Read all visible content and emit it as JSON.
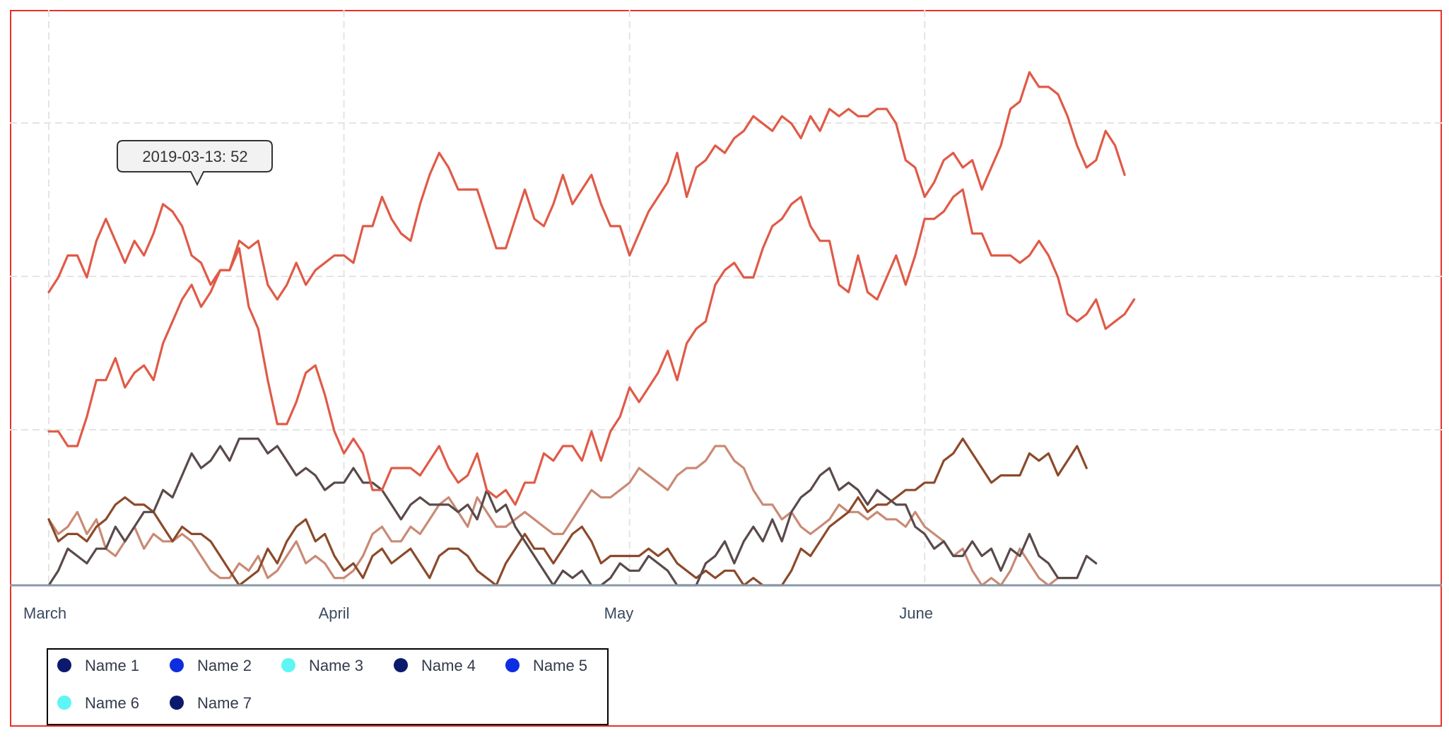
{
  "chart_data": {
    "type": "line",
    "title": "",
    "xlabel": "",
    "ylabel": "",
    "x_start": "2019-03-01",
    "x_end": "2019-06-21",
    "xtick_labels": [
      {
        "date": "2019-03-01",
        "label": "March"
      },
      {
        "date": "2019-04-01",
        "label": "April"
      },
      {
        "date": "2019-05-01",
        "label": "May"
      },
      {
        "date": "2019-06-01",
        "label": "June"
      }
    ],
    "ylim": [
      0,
      76
    ],
    "grid": true,
    "legend_position": "bottom-left",
    "tooltip": {
      "text": "2019-03-13: 52",
      "date": "2019-03-13",
      "value": 52
    },
    "series": [
      {
        "name": "Name 1",
        "color": "#e05a47",
        "legend_color": "#0c1a6e",
        "values": [
          40,
          42,
          45,
          45,
          42,
          47,
          50,
          47,
          44,
          47,
          45,
          48,
          52,
          51,
          49,
          45,
          44,
          41,
          43,
          43,
          47,
          46,
          47,
          41,
          39,
          41,
          44,
          41,
          43,
          44,
          45,
          45,
          44,
          49,
          49,
          53,
          50,
          48,
          47,
          52,
          56,
          59,
          57,
          54,
          54,
          54,
          50,
          46,
          46,
          50,
          54,
          50,
          49,
          52,
          56,
          52,
          54,
          56,
          52,
          49,
          49,
          45,
          48,
          51,
          53,
          55,
          59,
          53,
          57,
          58,
          60,
          59,
          61,
          62,
          64,
          63,
          62,
          64,
          63,
          61,
          64,
          62,
          65,
          64,
          65,
          64,
          64,
          65,
          65,
          63,
          58,
          57,
          53,
          55,
          58,
          59,
          57,
          58,
          54,
          57,
          60,
          65,
          66,
          70,
          68,
          68,
          67,
          64,
          60,
          57,
          58,
          62,
          60,
          56
        ]
      },
      {
        "name": "Name 2",
        "color": "#e05a47",
        "legend_color": "#0d2ee0",
        "values": [
          21,
          21,
          19,
          19,
          23,
          28,
          28,
          31,
          27,
          29,
          30,
          28,
          33,
          36,
          39,
          41,
          38,
          40,
          43,
          43,
          46,
          38,
          35,
          28,
          22,
          22,
          25,
          29,
          30,
          26,
          21,
          18,
          20,
          18,
          13,
          13,
          16,
          16,
          16,
          15,
          17,
          19,
          16,
          14,
          15,
          18,
          13,
          12,
          13,
          11,
          14,
          14,
          18,
          17,
          19,
          19,
          17,
          21,
          17,
          21,
          23,
          27,
          25,
          27,
          29,
          32,
          28,
          33,
          35,
          36,
          41,
          43,
          44,
          42,
          42,
          46,
          49,
          50,
          52,
          53,
          49,
          47,
          47,
          41,
          40,
          45,
          40,
          39,
          42,
          45,
          41,
          45,
          50,
          50,
          51,
          53,
          54,
          48,
          48,
          45,
          45,
          45,
          44,
          45,
          47,
          45,
          42,
          37,
          36,
          37,
          39,
          35,
          36,
          37,
          39
        ]
      },
      {
        "name": "Name 3",
        "color": "#c98a75",
        "legend_color": "#5ff5f5",
        "values": [
          9,
          7,
          8,
          10,
          7,
          9,
          5,
          4,
          6,
          8,
          5,
          7,
          6,
          6,
          7,
          6,
          4,
          2,
          1,
          1,
          3,
          2,
          4,
          1,
          2,
          4,
          6,
          3,
          4,
          3,
          1,
          1,
          2,
          4,
          7,
          8,
          6,
          6,
          8,
          7,
          9,
          11,
          12,
          10,
          8,
          12,
          10,
          8,
          8,
          9,
          10,
          9,
          8,
          7,
          7,
          9,
          11,
          13,
          12,
          12,
          13,
          14,
          16,
          15,
          14,
          13,
          15,
          16,
          16,
          17,
          19,
          19,
          17,
          16,
          13,
          11,
          11,
          9,
          10,
          8,
          7,
          8,
          9,
          11,
          10,
          10,
          9,
          10,
          9,
          9,
          8,
          10,
          8,
          7,
          6,
          4,
          5,
          2,
          0,
          1,
          0,
          2,
          5,
          3,
          1,
          0,
          1
        ]
      },
      {
        "name": "Name 4",
        "color": "#8b4a2a",
        "legend_color": "#0c1a6e",
        "values": [
          9,
          6,
          7,
          7,
          6,
          8,
          9,
          11,
          12,
          11,
          11,
          10,
          8,
          6,
          8,
          7,
          7,
          6,
          4,
          2,
          0,
          1,
          2,
          5,
          3,
          6,
          8,
          9,
          6,
          7,
          4,
          2,
          3,
          1,
          4,
          5,
          3,
          4,
          5,
          3,
          1,
          4,
          5,
          5,
          4,
          2,
          1,
          0,
          3,
          5,
          7,
          5,
          5,
          3,
          5,
          7,
          8,
          6,
          3,
          4,
          4,
          4,
          4,
          5,
          4,
          5,
          3,
          2,
          1,
          2,
          1,
          2,
          2,
          0,
          1,
          0,
          0,
          0,
          2,
          5,
          4,
          6,
          8,
          9,
          10,
          12,
          10,
          11,
          11,
          12,
          13,
          13,
          14,
          14,
          17,
          18,
          20,
          18,
          16,
          14,
          15,
          15,
          15,
          18,
          17,
          18,
          15,
          17,
          19,
          16
        ]
      },
      {
        "name": "Name 5",
        "color": "#5a4a4a",
        "legend_color": "#0d2ee0",
        "values": [
          0,
          2,
          5,
          4,
          3,
          5,
          5,
          8,
          6,
          8,
          10,
          10,
          13,
          12,
          15,
          18,
          16,
          17,
          19,
          17,
          20,
          20,
          20,
          18,
          19,
          17,
          15,
          16,
          15,
          13,
          14,
          14,
          16,
          14,
          14,
          13,
          11,
          9,
          11,
          12,
          11,
          11,
          11,
          10,
          11,
          9,
          13,
          10,
          11,
          8,
          6,
          4,
          2,
          0,
          2,
          1,
          2,
          0,
          0,
          1,
          3,
          2,
          2,
          4,
          3,
          2,
          0,
          0,
          0,
          3,
          4,
          6,
          3,
          6,
          8,
          6,
          9,
          6,
          10,
          12,
          13,
          15,
          16,
          13,
          14,
          13,
          11,
          13,
          12,
          11,
          11,
          8,
          7,
          5,
          6,
          4,
          4,
          6,
          4,
          5,
          2,
          5,
          4,
          7,
          4,
          3,
          1,
          1,
          1,
          4,
          3
        ]
      },
      {
        "name": "Name 6",
        "color": "#5ff5f5",
        "legend_color": "#5ff5f5",
        "values": []
      },
      {
        "name": "Name 7",
        "color": "#0c1a6e",
        "legend_color": "#0c1a6e",
        "values": []
      }
    ]
  }
}
